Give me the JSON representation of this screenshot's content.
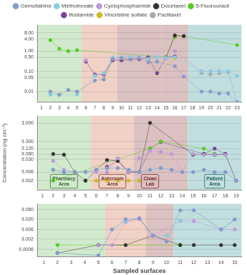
{
  "chart_data": [
    {
      "type": "scatter",
      "marker": "circle",
      "line_style": "solid",
      "log": "y",
      "grid": "y",
      "legend": "top",
      "xlim": [
        0.5,
        23.5
      ],
      "ylim": [
        0.003,
        20.0
      ],
      "xticks": [
        1,
        2,
        3,
        4,
        5,
        6,
        7,
        8,
        9,
        10,
        11,
        12,
        13,
        14,
        15,
        16,
        17,
        18,
        19,
        20,
        21,
        22,
        23
      ],
      "yticks": [
        0.01,
        0.05,
        {
          "value": 0.1,
          "label": "0.10"
        },
        {
          "value": 0.5,
          "label": "0.50"
        },
        {
          "value": 1,
          "label": "1.00"
        },
        {
          "value": 4,
          "label": "4.00"
        },
        {
          "value": 8,
          "label": "8.00"
        }
      ],
      "regions": [
        {
          "x": [
            0.5,
            5.5
          ],
          "color": "#b8ddb0"
        },
        {
          "x": [
            5.5,
            9.5
          ],
          "color": "#e8b8a8"
        },
        {
          "x": [
            9.5,
            14.5
          ],
          "color": "#c8a0a0"
        },
        {
          "x": [
            14.5,
            17.5
          ],
          "color": "#c8a0a0"
        },
        {
          "x": [
            17.5,
            23.5
          ],
          "color": "#a0cccc"
        }
      ],
      "series": [
        {
          "name": "Gemcitabine",
          "color": "#8899cc",
          "x": [
            2,
            3,
            4,
            5,
            7,
            8,
            9,
            10,
            11,
            12,
            13,
            14,
            16,
            17,
            19,
            20,
            21,
            22,
            23
          ],
          "values": [
            0.01,
            0.007,
            0.012,
            0.01,
            0.035,
            0.04,
            0.4,
            0.45,
            0.38,
            0.45,
            0.28,
            0.3,
            0.18,
            0.055,
            0.01,
            0.01,
            0.008,
            0.008,
            0.003
          ]
        },
        {
          "name": "Methotrexate",
          "color": "#88ccdd",
          "x": [
            2,
            3,
            5,
            7,
            8,
            9,
            10,
            11,
            12,
            13,
            14,
            15,
            16,
            19,
            20,
            21,
            22,
            23
          ],
          "values": [
            0.007,
            0.007,
            0.007,
            0.06,
            0.08,
            0.5,
            0.5,
            0.5,
            0.5,
            0.4,
            0.5,
            0.45,
            0.5,
            0.1,
            0.1,
            0.1,
            0.1,
            0.06
          ]
        },
        {
          "name": "Cyclophosphamide",
          "color": "#bb99dd",
          "x": [
            6,
            7,
            8,
            9,
            10,
            11,
            12,
            13,
            14,
            15,
            16,
            19,
            20,
            21,
            22
          ],
          "values": [
            0.35,
            0.06,
            0.08,
            0.45,
            0.45,
            0.5,
            0.5,
            0.4,
            0.5,
            0.45,
            1.0,
            0.1,
            0.1,
            0.1,
            0.1
          ]
        },
        {
          "name": "Docetaxel",
          "color": "#333333",
          "x": [
            15,
            16,
            17
          ],
          "values": [
            0.45,
            6.0,
            5.5
          ]
        },
        {
          "name": "5-Fluorouracil",
          "color": "#55cc22",
          "x": [
            2,
            3,
            4,
            5,
            15,
            16,
            17,
            23
          ],
          "values": [
            3.5,
            1.3,
            1.0,
            1.1,
            0.5,
            5.0,
            5.5,
            2.0
          ]
        },
        {
          "name": "Ifosfamide",
          "color": "#774499",
          "x": [
            6,
            7,
            8,
            9,
            10,
            11,
            12,
            13,
            14,
            15,
            16
          ],
          "values": [
            0.3,
            0.07,
            0.07,
            0.35,
            0.35,
            0.4,
            0.4,
            0.5,
            0.08,
            0.5,
            0.55
          ]
        },
        {
          "name": "Vincristine sulfate",
          "color": "#ccbb22",
          "x": [
            8,
            9,
            10,
            11,
            12,
            13,
            14,
            16
          ],
          "values": [
            0.04,
            0.35,
            0.35,
            0.38,
            0.45,
            0.42,
            0.08,
            0.45
          ]
        },
        {
          "name": "Paclitaxel",
          "color": "#aaaaaa",
          "x": [
            19,
            20,
            21,
            22,
            23
          ],
          "values": [
            0.08,
            0.07,
            0.08,
            0.09,
            0.003
          ]
        }
      ]
    },
    {
      "type": "scatter",
      "marker": "circle",
      "line_style": "solid",
      "log": "y",
      "grid": "y",
      "ylabel": "Concentration (ng cm⁻²)",
      "xlim": [
        0.5,
        19.5
      ],
      "ylim": [
        0.0006,
        8.0
      ],
      "xticks": [
        1,
        2,
        3,
        4,
        5,
        6,
        7,
        8,
        9,
        10,
        11,
        12,
        13,
        14,
        15,
        16,
        17,
        18,
        19
      ],
      "yticks": [
        0.002,
        0.006,
        {
          "value": 0.03,
          "label": "0.030"
        },
        {
          "value": 0.06,
          "label": "0.060"
        },
        {
          "value": 0.12,
          "label": "0.120"
        },
        {
          "value": 0.3,
          "label": "0.300"
        },
        {
          "value": 3,
          "label": "3.000"
        }
      ],
      "regions": [
        {
          "x": [
            0.5,
            5.5
          ],
          "color": "#b8ddb0"
        },
        {
          "x": [
            5.5,
            9.5
          ],
          "color": "#e8b8a8"
        },
        {
          "x": [
            9.5,
            12.5
          ],
          "color": "#c8a0a0"
        },
        {
          "x": [
            12.5,
            14.5
          ],
          "color": "#c8a0a0"
        },
        {
          "x": [
            14.5,
            19.5
          ],
          "color": "#a0cccc"
        }
      ],
      "annotations": [
        {
          "text": "Pharmacy\nArea",
          "x": 3.0,
          "color": "#336633"
        },
        {
          "text": "Anteroom\nArea",
          "x": 7.5,
          "color": "#7a3020"
        },
        {
          "text": "Clean\nLab",
          "x": 11.0,
          "color": "#7a2020"
        },
        {
          "text": "Patient\nArea",
          "x": 17.0,
          "color": "#1a6060"
        }
      ],
      "series": [
        {
          "name": "Gemcitabine",
          "color": "#8899cc",
          "x": [
            2,
            3,
            4,
            5,
            6,
            7,
            8,
            9,
            10,
            11,
            12,
            13,
            14,
            15,
            16,
            17,
            18,
            19
          ],
          "values": [
            0.008,
            0.006,
            0.006,
            0.006,
            0.008,
            0.01,
            0.01,
            0.008,
            0.006,
            0.008,
            0.01,
            0.008,
            0.006,
            0.006,
            0.008,
            0.006,
            0.006,
            0.002
          ]
        },
        {
          "name": "Methotrexate",
          "color": "#88ccdd",
          "x": [
            2,
            3,
            4,
            5,
            6,
            7,
            8,
            9,
            10,
            11,
            12,
            13,
            14,
            15,
            16,
            17,
            18,
            19
          ],
          "values": [
            0.008,
            0.006,
            0.006,
            0.006,
            0.008,
            0.01,
            0.01,
            0.008,
            0.006,
            0.008,
            0.01,
            0.008,
            0.006,
            0.006,
            0.008,
            0.006,
            0.006,
            0.002
          ]
        },
        {
          "name": "Cyclophosphamide",
          "color": "#bb99dd",
          "x": [
            2,
            3,
            4,
            6,
            7,
            8,
            9,
            10,
            11,
            12,
            13,
            14,
            15,
            16,
            17,
            18,
            19
          ],
          "values": [
            0.025,
            0.008,
            0.006,
            0.006,
            0.006,
            0.035,
            0.006,
            0.035,
            0.09,
            0.08,
            0.06,
            0.006,
            0.06,
            0.055,
            0.055,
            0.055,
            0.002
          ]
        },
        {
          "name": "Docetaxel",
          "color": "#333333",
          "x": [
            2,
            3,
            4,
            5,
            7,
            8,
            9,
            10,
            11,
            15,
            16,
            17,
            18,
            19
          ],
          "values": [
            0.06,
            0.055,
            0.006,
            0.002,
            0.028,
            0.025,
            0.006,
            0.006,
            3.2,
            0.055,
            0.06,
            0.055,
            0.06,
            0.002
          ]
        },
        {
          "name": "5-Fluorouracil",
          "color": "#55cc22",
          "x": [
            2,
            11,
            12,
            16,
            17
          ],
          "values": [
            0.002,
            0.12,
            0.3,
            0.12,
            0.06
          ]
        },
        {
          "name": "Ifosfamide",
          "color": "#774499",
          "x": [
            7,
            8,
            9,
            10,
            11,
            12,
            16,
            17,
            18
          ],
          "values": [
            0.012,
            0.025,
            0.006,
            0.006,
            0.12,
            0.28,
            0.06,
            0.12,
            0.06
          ]
        },
        {
          "name": "Vincristine sulfate",
          "color": "#ccbb22",
          "x": [
            5,
            6,
            7,
            8,
            9,
            10
          ],
          "values": [
            0.002,
            0.002,
            0.002,
            0.002,
            0.002,
            0.002
          ]
        },
        {
          "name": "Paclitaxel",
          "color": "#aaaaaa",
          "x": [
            16,
            17,
            18,
            19
          ],
          "values": [
            0.055,
            0.06,
            0.055,
            0.002
          ]
        }
      ]
    },
    {
      "type": "scatter",
      "marker": "circle",
      "line_style": "solid",
      "log": "y",
      "grid": "y",
      "xlabel": "Sampled surfaces",
      "xlim": [
        0.5,
        15.5
      ],
      "ylim": [
        0.00025,
        0.12
      ],
      "xticks": [
        1,
        2,
        3,
        4,
        5,
        6,
        7,
        8,
        9,
        10,
        11,
        12,
        13,
        14,
        15
      ],
      "yticks": [
        0.0006,
        0.002,
        0.006,
        {
          "value": 0.02,
          "label": "0.020"
        },
        {
          "value": 0.06,
          "label": "0.060"
        }
      ],
      "regions": [
        {
          "x": [
            0.5,
            5.5
          ],
          "color": "#b8ddb0"
        },
        {
          "x": [
            5.5,
            8.5
          ],
          "color": "#e8b8a8"
        },
        {
          "x": [
            8.5,
            10.5
          ],
          "color": "#c8a0a0"
        },
        {
          "x": [
            10.5,
            15.5
          ],
          "color": "#a0cccc"
        }
      ],
      "series": [
        {
          "name": "Gemcitabine",
          "color": "#8899cc",
          "x": [
            2,
            5,
            6,
            7,
            8,
            9,
            10,
            11,
            12,
            14,
            15
          ],
          "values": [
            0.0004,
            0.0003,
            0.006,
            0.02,
            0.022,
            0.003,
            0.0015,
            0.055,
            0.055,
            0.006,
            0.019
          ]
        },
        {
          "name": "Methotrexate",
          "color": "#88ccdd",
          "x": [
            2,
            5,
            6,
            7,
            8,
            9,
            10,
            11,
            12,
            14,
            15
          ],
          "values": [
            0.0004,
            0.0003,
            0.006,
            0.015,
            0.022,
            0.003,
            0.003,
            0.016,
            0.055,
            0.006,
            0.019
          ]
        },
        {
          "name": "Cyclophosphamide",
          "color": "#bb99dd",
          "x": [
            5,
            6,
            7,
            8,
            9,
            11,
            12,
            14,
            15
          ],
          "values": [
            0.001,
            0.001,
            0.015,
            0.022,
            0.003,
            0.016,
            0.016,
            0.006,
            0.006
          ]
        },
        {
          "name": "Docetaxel",
          "color": "#333333",
          "x": [
            2,
            5,
            7,
            9,
            11,
            12,
            14,
            15
          ],
          "values": [
            0.0004,
            0.001,
            0.001,
            0.003,
            0.001,
            0.001,
            0.001,
            0.001
          ]
        },
        {
          "name": "5-Fluorouracil",
          "color": "#55cc22",
          "x": [
            2,
            11
          ],
          "values": [
            0.001,
            0.001
          ]
        },
        {
          "name": "Ifosfamide",
          "color": "#774499",
          "x": [
            7,
            8,
            9
          ],
          "values": [
            0.015,
            0.021,
            0.003
          ]
        },
        {
          "name": "Vincristine sulfate",
          "color": "#ccbb22",
          "x": [
            5,
            11
          ],
          "values": [
            0.001,
            0.001
          ]
        },
        {
          "name": "Paclitaxel",
          "color": "#aaaaaa",
          "x": [
            14,
            15
          ],
          "values": [
            0.006,
            0.019
          ]
        }
      ]
    }
  ]
}
